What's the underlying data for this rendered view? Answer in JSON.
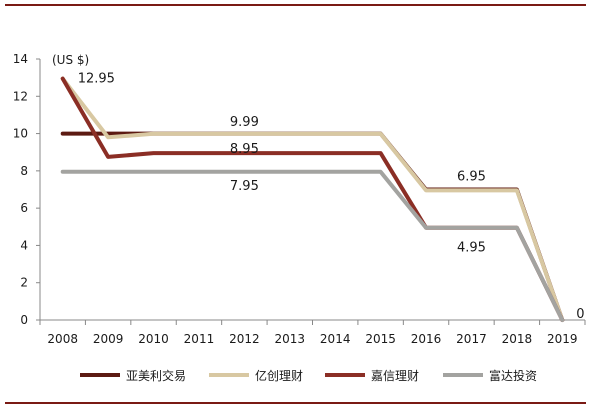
{
  "chart_data": {
    "type": "line",
    "unit_label": "(US $)",
    "x": [
      "2008",
      "2009",
      "2010",
      "2011",
      "2012",
      "2013",
      "2014",
      "2015",
      "2016",
      "2017",
      "2018",
      "2019"
    ],
    "y_ticks": [
      "0",
      "2",
      "4",
      "6",
      "8",
      "10",
      "12",
      "14"
    ],
    "ylim": [
      0,
      14
    ],
    "grid": false,
    "legend_position": "bottom",
    "series": [
      {
        "name": "亚美利交易",
        "color": "#5c1a12",
        "values": [
          10,
          10,
          10,
          10,
          10,
          10,
          10,
          10,
          7,
          7,
          7,
          0
        ]
      },
      {
        "name": "亿创理财",
        "color": "#d8c8a2",
        "values": [
          12.95,
          9.8,
          9.99,
          9.99,
          9.99,
          9.99,
          9.99,
          9.99,
          6.95,
          6.95,
          6.95,
          0
        ]
      },
      {
        "name": "嘉信理财",
        "color": "#8b2e25",
        "values": [
          12.95,
          8.75,
          8.95,
          8.95,
          8.95,
          8.95,
          8.95,
          8.95,
          4.95,
          4.95,
          4.95,
          0
        ]
      },
      {
        "name": "富达投资",
        "color": "#a3a3a0",
        "values": [
          7.95,
          7.95,
          7.95,
          7.95,
          7.95,
          7.95,
          7.95,
          7.95,
          4.95,
          4.95,
          4.95,
          0
        ]
      }
    ],
    "annotations": [
      {
        "text": "12.95",
        "x": "2008",
        "y": 12.95
      },
      {
        "text": "9.99",
        "x": "2012",
        "y": 9.99
      },
      {
        "text": "8.95",
        "x": "2012",
        "y": 8.95
      },
      {
        "text": "7.95",
        "x": "2012",
        "y": 7.95
      },
      {
        "text": "6.95",
        "x": "2017",
        "y": 6.95
      },
      {
        "text": "4.95",
        "x": "2017",
        "y": 4.95
      },
      {
        "text": "0",
        "x": "2019",
        "y": 0
      }
    ]
  },
  "colors": {
    "rule": "#7a1a14",
    "axis": "#888888"
  }
}
